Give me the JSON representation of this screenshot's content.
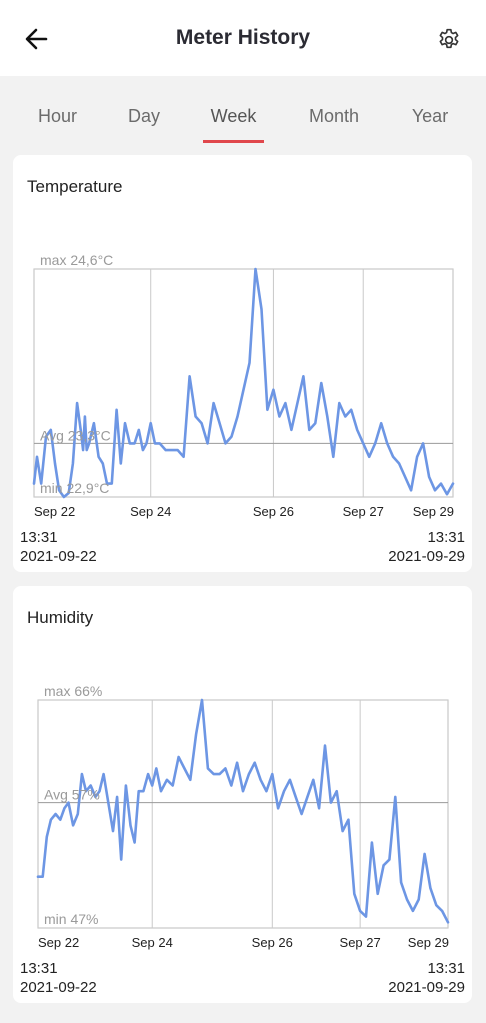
{
  "header": {
    "title": "Meter History",
    "back_icon": "arrow-left-icon",
    "settings_icon": "gear-icon"
  },
  "tabs": [
    {
      "label": "Hour",
      "active": false
    },
    {
      "label": "Day",
      "active": false
    },
    {
      "label": "Week",
      "active": true
    },
    {
      "label": "Month",
      "active": false
    },
    {
      "label": "Year",
      "active": false
    }
  ],
  "colors": {
    "accent": "#e0474c",
    "line": "#6d96e4",
    "grid": "#c9c9c9"
  },
  "charts": [
    {
      "title": "Temperature",
      "start_time": "13:31",
      "start_date": "2021-09-22",
      "end_time": "13:31",
      "end_date": "2021-09-29",
      "max_label": "max 24,6°C",
      "avg_label": "Avg 23,3°C",
      "min_label": "min 22,9°C"
    },
    {
      "title": "Humidity",
      "start_time": "13:31",
      "start_date": "2021-09-22",
      "end_time": "13:31",
      "end_date": "2021-09-29",
      "max_label": "max 66%",
      "avg_label": "Avg 57%",
      "min_label": "min 47%"
    }
  ],
  "chart_data": [
    {
      "type": "line",
      "title": "Temperature",
      "xlabel": "",
      "ylabel": "",
      "x_ticks": [
        "Sep 22",
        "Sep 24",
        "Sep 26",
        "Sep 27",
        "Sep 29"
      ],
      "x_range": [
        0,
        7
      ],
      "ylim": [
        22.9,
        24.6
      ],
      "reference_lines": {
        "max": 24.6,
        "avg": 23.3,
        "min": 22.9
      },
      "grid": true,
      "series": [
        {
          "x": [
            0,
            0.05,
            0.12,
            0.2,
            0.28,
            0.35,
            0.42,
            0.5,
            0.58,
            0.65,
            0.72,
            0.78,
            0.82,
            0.85,
            0.88,
            0.92,
            1.0,
            1.08,
            1.15,
            1.22,
            1.3,
            1.38,
            1.45,
            1.52,
            1.6,
            1.68,
            1.75,
            1.82,
            1.88,
            1.95,
            2.02,
            2.1,
            2.2,
            2.3,
            2.4,
            2.5,
            2.6,
            2.7,
            2.8,
            2.9,
            3.0,
            3.1,
            3.2,
            3.3,
            3.4,
            3.5,
            3.6,
            3.7,
            3.8,
            3.9,
            4.0,
            4.1,
            4.2,
            4.3,
            4.4,
            4.5,
            4.6,
            4.7,
            4.8,
            4.9,
            5.0,
            5.1,
            5.2,
            5.3,
            5.4,
            5.5,
            5.6,
            5.7,
            5.8,
            5.9,
            6.0,
            6.1,
            6.2,
            6.3,
            6.4,
            6.5,
            6.6,
            6.7,
            6.8,
            6.9,
            7.0
          ],
          "y": [
            23.0,
            23.2,
            23.0,
            23.35,
            23.4,
            23.15,
            22.95,
            22.9,
            22.93,
            23.15,
            23.6,
            23.4,
            23.25,
            23.5,
            23.25,
            23.3,
            23.45,
            23.2,
            23.15,
            23.0,
            23.0,
            23.55,
            23.15,
            23.45,
            23.3,
            23.3,
            23.4,
            23.25,
            23.3,
            23.45,
            23.3,
            23.3,
            23.25,
            23.25,
            23.25,
            23.2,
            23.8,
            23.5,
            23.45,
            23.3,
            23.6,
            23.45,
            23.3,
            23.35,
            23.5,
            23.7,
            23.9,
            24.6,
            24.3,
            23.55,
            23.7,
            23.5,
            23.6,
            23.4,
            23.6,
            23.8,
            23.4,
            23.45,
            23.75,
            23.5,
            23.2,
            23.6,
            23.5,
            23.55,
            23.4,
            23.3,
            23.2,
            23.3,
            23.45,
            23.3,
            23.2,
            23.15,
            23.05,
            22.95,
            23.2,
            23.3,
            23.05,
            22.95,
            23.0,
            22.92,
            23.0
          ]
        }
      ]
    },
    {
      "type": "line",
      "title": "Humidity",
      "xlabel": "",
      "ylabel": "",
      "x_ticks": [
        "Sep 22",
        "Sep 24",
        "Sep 26",
        "Sep 27",
        "Sep 29"
      ],
      "x_range": [
        0,
        7
      ],
      "ylim": [
        46,
        66
      ],
      "reference_lines": {
        "max": 66,
        "avg": 57,
        "min": 47
      },
      "grid": true,
      "series": [
        {
          "x": [
            0,
            0.08,
            0.15,
            0.22,
            0.3,
            0.38,
            0.45,
            0.52,
            0.6,
            0.68,
            0.75,
            0.82,
            0.9,
            0.98,
            1.05,
            1.12,
            1.2,
            1.28,
            1.35,
            1.42,
            1.5,
            1.58,
            1.65,
            1.72,
            1.8,
            1.88,
            1.95,
            2.02,
            2.1,
            2.2,
            2.3,
            2.4,
            2.5,
            2.6,
            2.7,
            2.8,
            2.9,
            3.0,
            3.1,
            3.2,
            3.3,
            3.4,
            3.5,
            3.6,
            3.7,
            3.8,
            3.9,
            4.0,
            4.1,
            4.2,
            4.3,
            4.4,
            4.5,
            4.6,
            4.7,
            4.8,
            4.9,
            5.0,
            5.1,
            5.2,
            5.3,
            5.4,
            5.5,
            5.6,
            5.7,
            5.8,
            5.9,
            6.0,
            6.1,
            6.2,
            6.3,
            6.4,
            6.5,
            6.6,
            6.7,
            6.8,
            6.9,
            7.0
          ],
          "y": [
            50.5,
            50.5,
            54.0,
            55.5,
            56.0,
            55.5,
            56.5,
            57.0,
            55.0,
            56.0,
            59.5,
            58.0,
            58.5,
            57.5,
            58.0,
            59.5,
            57.0,
            54.5,
            57.5,
            52.0,
            58.5,
            55.0,
            53.5,
            58.0,
            58.0,
            59.5,
            58.5,
            60.0,
            58.0,
            59.0,
            58.5,
            61.0,
            60.0,
            59.0,
            63.0,
            66.0,
            60.0,
            59.5,
            59.5,
            60.0,
            58.5,
            60.5,
            58.0,
            59.5,
            60.5,
            59.0,
            58.0,
            59.5,
            56.5,
            58.0,
            59.0,
            57.5,
            56.0,
            57.5,
            59.0,
            56.5,
            62.0,
            57.0,
            58.0,
            54.5,
            55.5,
            49.0,
            47.5,
            47.0,
            53.5,
            49.0,
            51.5,
            52.0,
            57.5,
            50.0,
            48.5,
            47.5,
            48.5,
            52.5,
            49.5,
            48.0,
            47.5,
            46.5
          ]
        }
      ]
    }
  ]
}
